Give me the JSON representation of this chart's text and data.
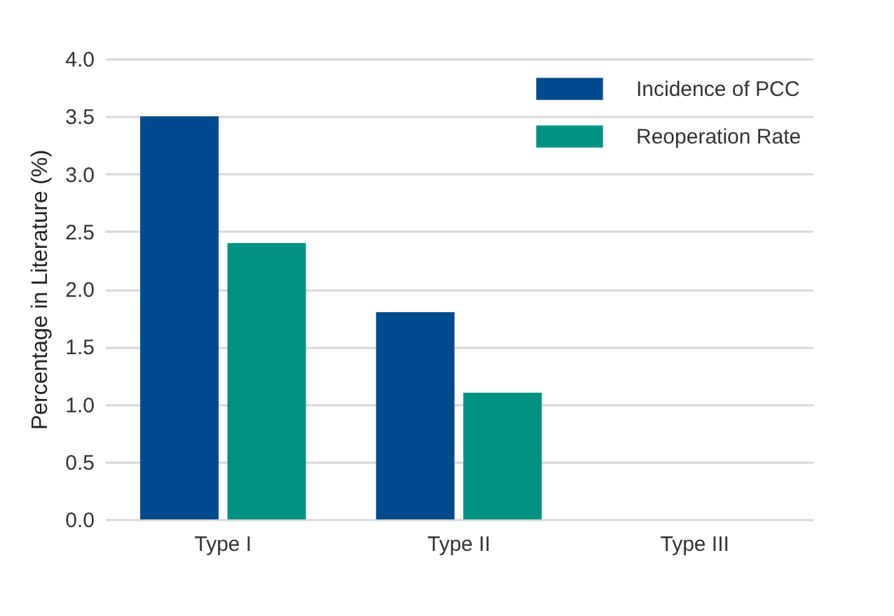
{
  "chart_data": {
    "type": "bar",
    "ylabel": "Percentage in Literature (%)",
    "categories": [
      "Type I",
      "Type II",
      "Type III"
    ],
    "series": [
      {
        "name": "Incidence of PCC",
        "color": "#004b8d",
        "values": [
          3.5,
          1.8,
          0
        ]
      },
      {
        "name": "Reoperation Rate",
        "color": "#009183",
        "values": [
          2.4,
          1.1,
          0
        ]
      }
    ],
    "ylim": [
      0,
      4.0
    ],
    "yticks": [
      {
        "value": 0,
        "label": "0.0"
      },
      {
        "value": 0.5,
        "label": "0.5"
      },
      {
        "value": 1,
        "label": "1.0"
      },
      {
        "value": 1.5,
        "label": "1.5"
      },
      {
        "value": 2,
        "label": "2.0"
      },
      {
        "value": 2.5,
        "label": "2.5"
      },
      {
        "value": 3,
        "label": "3.0"
      },
      {
        "value": 3.5,
        "label": "3.5"
      },
      {
        "value": 4,
        "label": "4.0"
      }
    ],
    "grid": "y",
    "legend": "top right"
  }
}
